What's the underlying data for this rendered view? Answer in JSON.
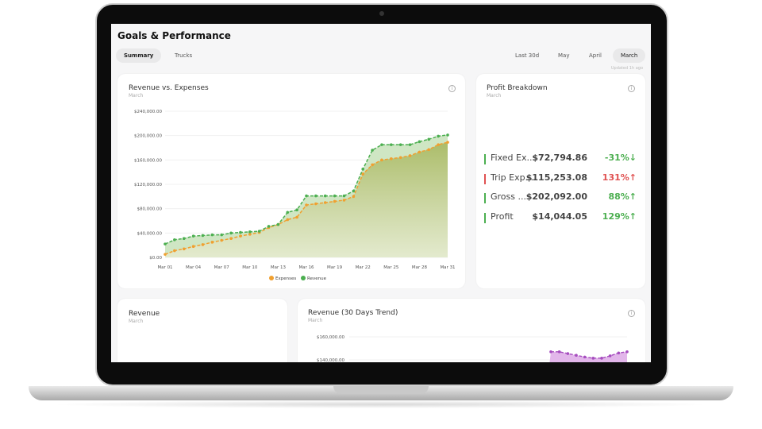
{
  "header": {
    "title": "Goals & Performance",
    "updated": "Updated 1h ago"
  },
  "tabs": [
    {
      "label": "Summary",
      "active": true
    },
    {
      "label": "Trucks",
      "active": false
    }
  ],
  "periods": [
    {
      "label": "Last 30d",
      "active": false
    },
    {
      "label": "May",
      "active": false
    },
    {
      "label": "April",
      "active": false
    },
    {
      "label": "March",
      "active": true
    }
  ],
  "revenue_vs_expenses": {
    "title": "Revenue vs. Expenses",
    "subtitle": "March"
  },
  "profit_breakdown": {
    "title": "Profit Breakdown",
    "subtitle": "March",
    "rows": [
      {
        "label": "Fixed Ex...",
        "value": "$72,794.86",
        "change": "-31%",
        "arrow": "↓",
        "color": "#4caf50"
      },
      {
        "label": "Trip Exp...",
        "value": "$115,253.08",
        "change": "131%",
        "arrow": "↑",
        "color": "#e05252"
      },
      {
        "label": "Gross ...",
        "value": "$202,092.00",
        "change": "88%",
        "arrow": "↑",
        "color": "#4caf50"
      },
      {
        "label": "Profit",
        "value": "$14,044.05",
        "change": "129%",
        "arrow": "↑",
        "color": "#4caf50"
      }
    ]
  },
  "revenue_card": {
    "title": "Revenue",
    "subtitle": "March"
  },
  "trend_card": {
    "title": "Revenue (30 Days Trend)",
    "subtitle": "March"
  },
  "chart_data": [
    {
      "type": "area",
      "title": "Revenue vs. Expenses",
      "ylim": [
        0,
        240000
      ],
      "yticks": [
        "$0.00",
        "$40,000.00",
        "$80,000.00",
        "$120,000.00",
        "$160,000.00",
        "$200,000.00",
        "$240,000.00"
      ],
      "xticks": [
        "Mar 01",
        "Mar 04",
        "Mar 07",
        "Mar 10",
        "Mar 13",
        "Mar 16",
        "Mar 19",
        "Mar 22",
        "Mar 25",
        "Mar 28",
        "Mar 31"
      ],
      "legend": "bottom",
      "series": [
        {
          "name": "Expenses",
          "color": "#f0a030",
          "values": [
            5000,
            11000,
            14000,
            18000,
            21000,
            25000,
            28000,
            31000,
            35000,
            38000,
            41000,
            49000,
            54000,
            62000,
            66000,
            86000,
            88000,
            90000,
            92000,
            94000,
            100000,
            137000,
            152000,
            160000,
            162000,
            164000,
            167000,
            173000,
            177000,
            185000,
            189000
          ]
        },
        {
          "name": "Revenue",
          "color": "#4caf50",
          "values": [
            22000,
            29000,
            31000,
            35000,
            36000,
            37000,
            37000,
            40000,
            41000,
            42000,
            43000,
            51000,
            54000,
            74000,
            78000,
            101000,
            101000,
            101000,
            101000,
            101000,
            109000,
            145000,
            176000,
            185000,
            185000,
            185000,
            185000,
            190000,
            194000,
            199000,
            201000
          ]
        }
      ]
    },
    {
      "type": "area",
      "title": "Revenue (30 Days Trend)",
      "yticks": [
        "$140,000.00",
        "$160,000.00"
      ],
      "color": "#a64dbf",
      "series": [
        {
          "values": [
            147000,
            147000,
            145500,
            144000,
            142500,
            141500,
            141500,
            143500,
            146000,
            147000
          ]
        }
      ]
    }
  ]
}
